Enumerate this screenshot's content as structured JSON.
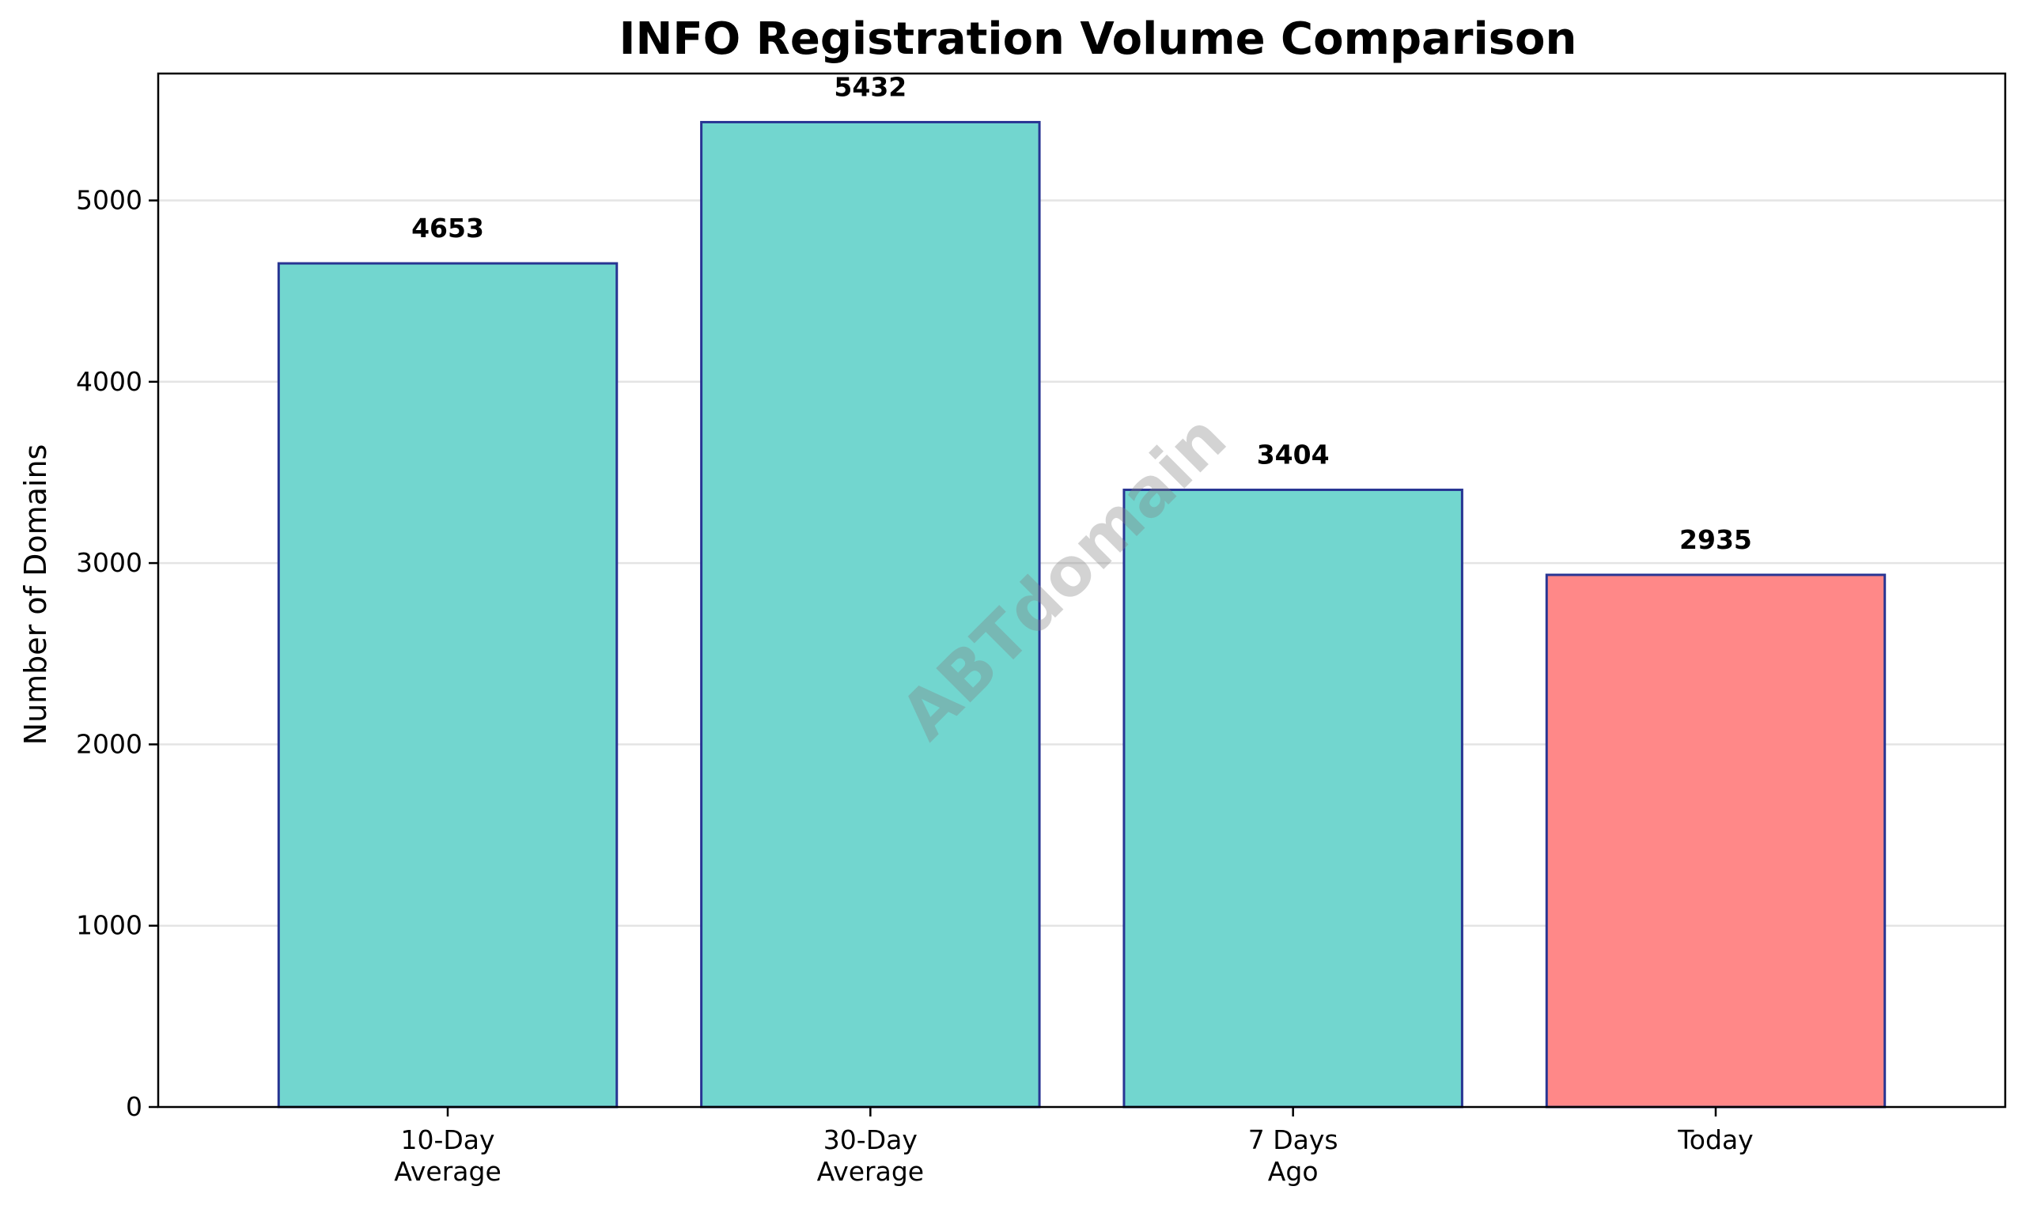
{
  "chart_data": {
    "type": "bar",
    "title": "INFO Registration Volume Comparison",
    "xlabel": "",
    "ylabel": "Number of Domains",
    "categories": [
      [
        "10-Day",
        "Average"
      ],
      [
        "30-Day",
        "Average"
      ],
      [
        "7 Days",
        "Ago"
      ],
      [
        "Today"
      ]
    ],
    "values": [
      4653,
      5432,
      3404,
      2935
    ],
    "value_labels": [
      "4653",
      "5432",
      "3404",
      "2935"
    ],
    "bar_colors": [
      "#72d6cf",
      "#72d6cf",
      "#72d6cf",
      "#ff8888"
    ],
    "bar_edge_color": "#283593",
    "ylim": [
      0,
      5700
    ],
    "yticks": [
      0,
      1000,
      2000,
      3000,
      4000,
      5000
    ],
    "ytick_labels": [
      "0",
      "1000",
      "2000",
      "3000",
      "4000",
      "5000"
    ],
    "grid": "y",
    "legend": "none"
  },
  "watermark": {
    "text": "ABTdomain"
  }
}
